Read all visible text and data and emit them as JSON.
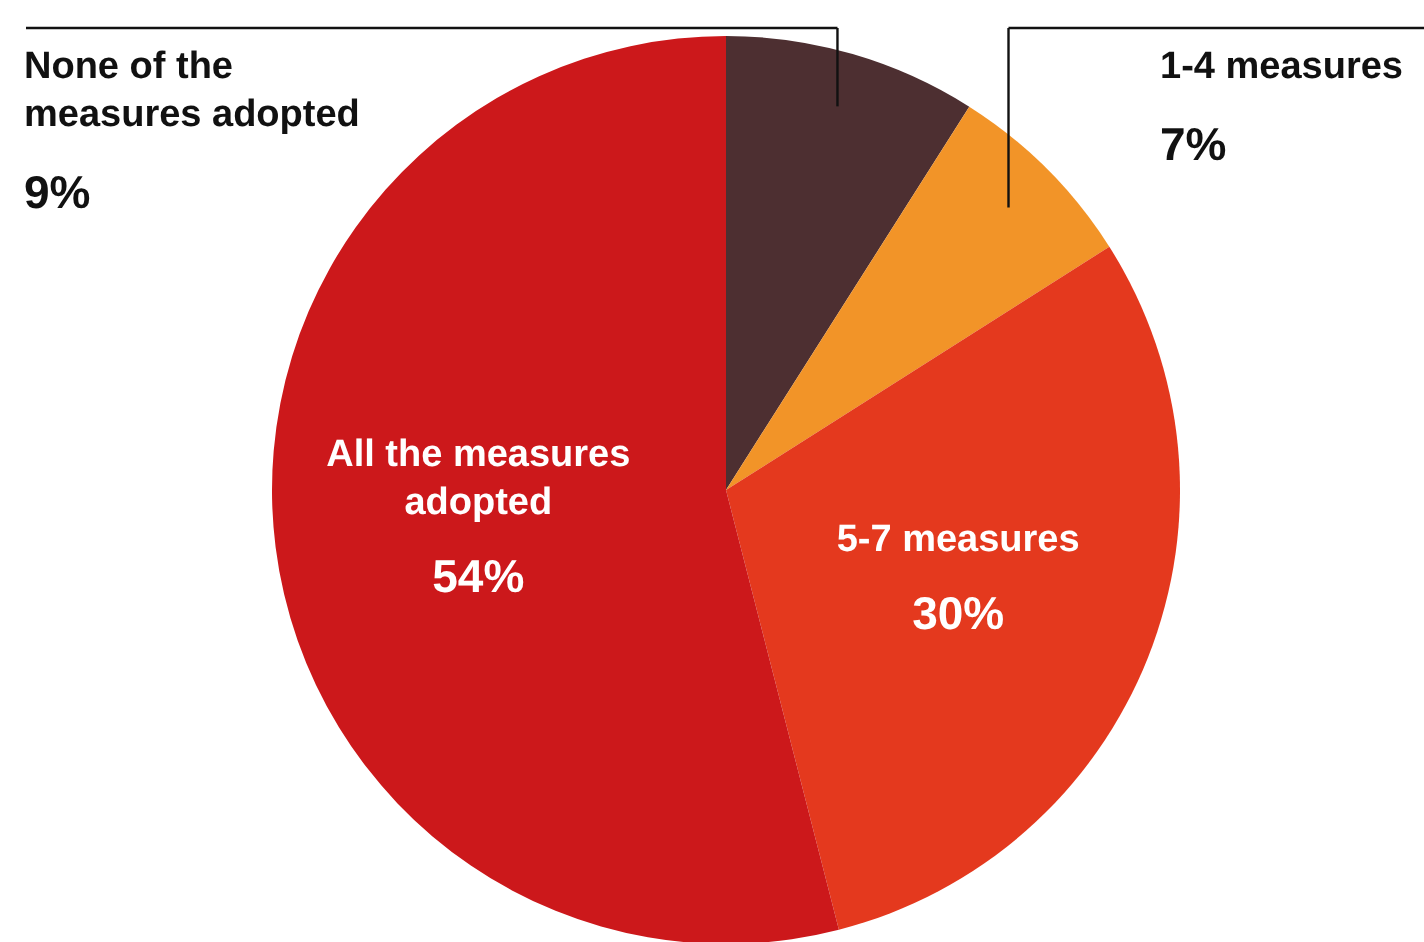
{
  "chart_data": {
    "type": "pie",
    "categories": [
      "None of the measures adopted",
      "1-4 measures",
      "5-7 measures",
      "All the measures adopted"
    ],
    "values": [
      9,
      7,
      30,
      54
    ],
    "colors": [
      "#4d2f31",
      "#f29428",
      "#e4391e",
      "#cc181b"
    ],
    "value_labels": [
      "9%",
      "7%",
      "30%",
      "54%"
    ]
  }
}
